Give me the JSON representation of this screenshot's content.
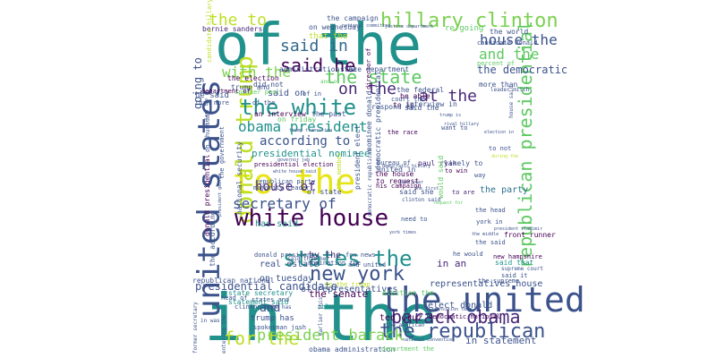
{
  "words": [
    {
      "text": "of the",
      "color": "#21918c"
    },
    {
      "text": "in the",
      "color": "#21918c"
    },
    {
      "text": "united states",
      "color": "#3b528b"
    },
    {
      "text": "to the",
      "color": "#e7e419"
    },
    {
      "text": "the united",
      "color": "#3b528b"
    },
    {
      "text": "hillary clinton",
      "color": "#7ad151"
    },
    {
      "text": "donald trump",
      "color": "#bddf26"
    },
    {
      "text": "the white",
      "color": "#21918c"
    },
    {
      "text": "white house",
      "color": "#440154"
    },
    {
      "text": "new york",
      "color": "#3b528b"
    },
    {
      "text": "states the",
      "color": "#21918c"
    },
    {
      "text": "the republican",
      "color": "#3b528b"
    },
    {
      "text": "for the",
      "color": "#bddf26"
    },
    {
      "text": "barack obama",
      "color": "#482878"
    },
    {
      "text": "president barack",
      "color": "#7ad151"
    },
    {
      "text": "republican presidential",
      "color": "#5ec962"
    },
    {
      "text": "the state",
      "color": "#5ec962"
    },
    {
      "text": "said in",
      "color": "#31688e"
    },
    {
      "text": "said he",
      "color": "#440154"
    },
    {
      "text": "the to",
      "color": "#bddf26"
    },
    {
      "text": "house the",
      "color": "#3b528b"
    },
    {
      "text": "and the",
      "color": "#5ec962"
    },
    {
      "text": "the democratic",
      "color": "#3b528b"
    },
    {
      "text": "on the",
      "color": "#482878"
    },
    {
      "text": "at the",
      "color": "#482878"
    },
    {
      "text": "with the",
      "color": "#7ad151"
    },
    {
      "text": "obama president",
      "color": "#21918c"
    },
    {
      "text": "according to",
      "color": "#3b528b"
    },
    {
      "text": "secretary of",
      "color": "#3b528b"
    },
    {
      "text": "house of",
      "color": "#482878"
    },
    {
      "text": "going to",
      "color": "#3b528b"
    },
    {
      "text": "and",
      "color": "#3b528b"
    },
    {
      "text": "the senate",
      "color": "#440154"
    },
    {
      "text": "of representatives",
      "color": "#3b528b"
    },
    {
      "text": "presidential candidate",
      "color": "#3b528b"
    },
    {
      "text": "said on",
      "color": "#3b528b"
    },
    {
      "text": "the party",
      "color": "#2c728e"
    },
    {
      "text": "in an",
      "color": "#482878"
    },
    {
      "text": "in statement",
      "color": "#3b528b"
    },
    {
      "text": "elect donald",
      "color": "#3b528b"
    },
    {
      "text": "representatives house",
      "color": "#3b528b"
    },
    {
      "text": "ted cruz",
      "color": "#440154"
    },
    {
      "text": "obama administration",
      "color": "#3b528b"
    },
    {
      "text": "trump has",
      "color": "#3b528b"
    },
    {
      "text": "on tuesday",
      "color": "#3b528b"
    },
    {
      "text": "real estate",
      "color": "#3b528b"
    },
    {
      "text": "has said",
      "color": "#21918c"
    },
    {
      "text": "by the",
      "color": "#482878"
    },
    {
      "text": "the campaign",
      "color": "#3b528b"
    },
    {
      "text": "on wednesday",
      "color": "#3b528b"
    },
    {
      "text": "that the",
      "color": "#bddf26"
    },
    {
      "text": "he said",
      "color": "#3b528b"
    },
    {
      "text": "the election",
      "color": "#440154"
    },
    {
      "text": "trump and",
      "color": "#3b528b"
    },
    {
      "text": "did not",
      "color": "#3b528b"
    },
    {
      "text": "bernie sanders",
      "color": "#482878"
    },
    {
      "text": "administration the",
      "color": "#3b528b"
    },
    {
      "text": "state department",
      "color": "#3b528b"
    },
    {
      "text": "more than",
      "color": "#3b528b"
    },
    {
      "text": "be able",
      "color": "#440154"
    },
    {
      "text": "to is",
      "color": "#440154"
    },
    {
      "text": "interview in",
      "color": "#3b528b"
    },
    {
      "text": "an interview",
      "color": "#440154"
    },
    {
      "text": "the past",
      "color": "#3b528b"
    },
    {
      "text": "the federal",
      "color": "#3b528b"
    },
    {
      "text": "said the",
      "color": "#3b528b"
    },
    {
      "text": "respond to",
      "color": "#3b528b"
    },
    {
      "text": "on friday",
      "color": "#5ec962"
    },
    {
      "text": "presidential nominee",
      "color": "#21918c"
    },
    {
      "text": "presidential election",
      "color": "#440154"
    },
    {
      "text": "national security",
      "color": "#3b528b"
    },
    {
      "text": "majority leader",
      "color": "#3b528b"
    },
    {
      "text": "of state",
      "color": "#3b528b"
    },
    {
      "text": "donald president",
      "color": "#3b528b"
    },
    {
      "text": "to request",
      "color": "#440154"
    },
    {
      "text": "united in",
      "color": "#3b528b"
    },
    {
      "text": "paul ryan",
      "color": "#482878"
    },
    {
      "text": "likely to",
      "color": "#3b528b"
    },
    {
      "text": "to win",
      "color": "#440154"
    },
    {
      "text": "the house",
      "color": "#440154"
    },
    {
      "text": "would said",
      "color": "#5ec962"
    },
    {
      "text": "to are",
      "color": "#482878"
    },
    {
      "text": "his campaign",
      "color": "#440154"
    },
    {
      "text": "said she",
      "color": "#3b528b"
    },
    {
      "text": "need to",
      "color": "#3b528b"
    },
    {
      "text": "the head",
      "color": "#3b528b"
    },
    {
      "text": "york in",
      "color": "#3b528b"
    },
    {
      "text": "front runner",
      "color": "#440154"
    },
    {
      "text": "new hampshire",
      "color": "#440154"
    },
    {
      "text": "the said",
      "color": "#3b528b"
    },
    {
      "text": "said that",
      "color": "#21918c"
    },
    {
      "text": "said it",
      "color": "#3b528b"
    },
    {
      "text": "the supreme",
      "color": "#3b528b"
    },
    {
      "text": "he would",
      "color": "#3b528b"
    },
    {
      "text": "and united",
      "color": "#3b528b"
    },
    {
      "text": "fox news",
      "color": "#3b528b"
    },
    {
      "text": "head of",
      "color": "#3b528b"
    },
    {
      "text": "states and",
      "color": "#3b528b"
    },
    {
      "text": "clinton has",
      "color": "#3b528b"
    },
    {
      "text": "republican national",
      "color": "#3b528b"
    },
    {
      "text": "state secretary",
      "color": "#21918c"
    },
    {
      "text": "statement said",
      "color": "#21918c"
    },
    {
      "text": "spokesman josh",
      "color": "#3b528b"
    },
    {
      "text": "democratic national",
      "color": "#440154"
    },
    {
      "text": "able to",
      "color": "#21918c"
    },
    {
      "text": "the race",
      "color": "#440154"
    },
    {
      "text": "want to",
      "color": "#3b528b"
    },
    {
      "text": "on thursday",
      "color": "#3b528b"
    },
    {
      "text": "the government",
      "color": "#3b528b"
    },
    {
      "text": "speaker paul",
      "color": "#5ec962"
    },
    {
      "text": "department of",
      "color": "#440154"
    },
    {
      "text": "than more",
      "color": "#3b528b"
    },
    {
      "text": "candidate hillary",
      "color": "#bddf26"
    },
    {
      "text": "re going",
      "color": "#5ec962"
    },
    {
      "text": "candidate donald",
      "color": "#3b528b"
    },
    {
      "text": "the world",
      "color": "#3b528b"
    },
    {
      "text": "percent of",
      "color": "#5ec962"
    },
    {
      "text": "director of",
      "color": "#440154"
    },
    {
      "text": "national committee",
      "color": "#3b528b"
    },
    {
      "text": "justice department",
      "color": "#3b528b"
    },
    {
      "text": "leader mitch",
      "color": "#3b528b"
    },
    {
      "text": "court the",
      "color": "#3b528b"
    },
    {
      "text": "trump is",
      "color": "#3b528b"
    },
    {
      "text": "rival hillary",
      "color": "#3b528b"
    },
    {
      "text": "election in",
      "color": "#3b528b"
    },
    {
      "text": "house said",
      "color": "#3b528b"
    },
    {
      "text": "to not",
      "color": "#3b528b"
    },
    {
      "text": "during the",
      "color": "#bddf26"
    },
    {
      "text": "way",
      "color": "#3b528b"
    },
    {
      "text": "trump transition",
      "color": "#3b528b"
    },
    {
      "text": "democratic presidential",
      "color": "#3b528b"
    },
    {
      "text": "nominee donald",
      "color": "#3b528b"
    },
    {
      "text": "bureau of",
      "color": "#3b528b"
    },
    {
      "text": "republican party",
      "color": "#3b528b"
    },
    {
      "text": "president elect",
      "color": "#3b528b"
    },
    {
      "text": "the member",
      "color": "#bddf26"
    },
    {
      "text": "to the trump",
      "color": "#bddf26"
    },
    {
      "text": "democratic republican",
      "color": "#3b528b"
    },
    {
      "text": "york times",
      "color": "#3b528b"
    },
    {
      "text": "the american",
      "color": "#3b528b"
    },
    {
      "text": "transition team",
      "color": "#3b528b"
    },
    {
      "text": "nomination the",
      "color": "#3b528b"
    },
    {
      "text": "earlier this",
      "color": "#3b528b"
    },
    {
      "text": "election the",
      "color": "#5ec962"
    },
    {
      "text": "national convention",
      "color": "#3b528b"
    },
    {
      "text": "supreme court",
      "color": "#3b528b"
    },
    {
      "text": "president vladimir",
      "color": "#3b528b"
    },
    {
      "text": "department the",
      "color": "#5ec962"
    },
    {
      "text": "governor jeb",
      "color": "#3b528b"
    },
    {
      "text": "former secretary",
      "color": "#3b528b"
    },
    {
      "text": "said that he",
      "color": "#3b528b"
    },
    {
      "text": "white house said",
      "color": "#3b528b"
    },
    {
      "text": "hillary the",
      "color": "#3b528b"
    },
    {
      "text": "the middle",
      "color": "#3b528b"
    },
    {
      "text": "clinton said",
      "color": "#3b528b"
    },
    {
      "text": "the first",
      "color": "#3b528b"
    },
    {
      "text": "request for",
      "color": "#5ec962"
    },
    {
      "text": "democratic hillary",
      "color": "#3b528b"
    },
    {
      "text": "the according",
      "color": "#3b528b"
    },
    {
      "text": "donald presidential",
      "color": "#440154"
    },
    {
      "text": "president george",
      "color": "#3b528b"
    },
    {
      "text": "entering the",
      "color": "#3b528b"
    },
    {
      "text": "in was",
      "color": "#3b528b"
    },
    {
      "text": "he has",
      "color": "#3b528b"
    },
    {
      "text": "this year",
      "color": "#3b528b"
    },
    {
      "text": "of the",
      "color": "#3b528b"
    },
    {
      "text": "of in",
      "color": "#3b528b"
    },
    {
      "text": "and of",
      "color": "#5ec962"
    }
  ]
}
